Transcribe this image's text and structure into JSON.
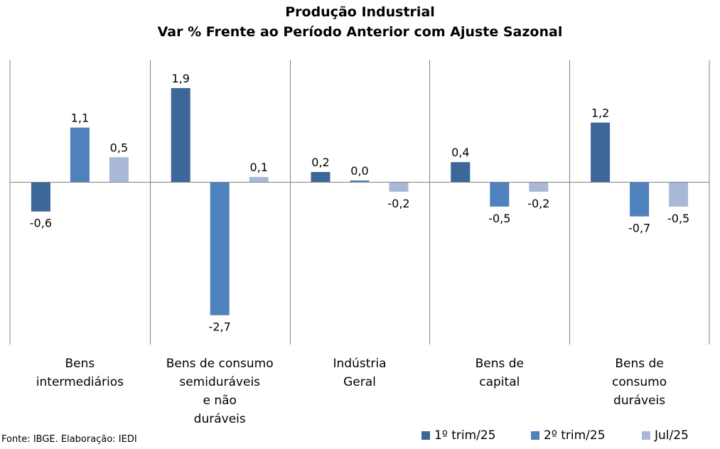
{
  "title": "Produção Industrial",
  "subtitle": "Var % Frente ao Período Anterior com Ajuste Sazonal",
  "source": "Fonte: IBGE. Elaboração: IEDI",
  "legend": [
    "1º trim/25",
    "2º trim/25",
    "Jul/25"
  ],
  "colors": [
    "#3d6699",
    "#4f81bd",
    "#aab8d8"
  ],
  "chart_data": {
    "type": "bar",
    "title": "Produção Industrial",
    "subtitle": "Var % Frente ao Período Anterior com Ajuste Sazonal",
    "categories": [
      [
        "Bens",
        "intermediários"
      ],
      [
        "Bens de consumo",
        "semiduráveis",
        "e não",
        "duráveis"
      ],
      [
        "Indústria",
        "Geral"
      ],
      [
        "Bens de",
        "capital"
      ],
      [
        "Bens de",
        "consumo",
        "duráveis"
      ]
    ],
    "series": [
      {
        "name": "1º trim/25",
        "values": [
          -0.6,
          1.9,
          0.2,
          0.4,
          1.2
        ]
      },
      {
        "name": "2º trim/25",
        "values": [
          1.1,
          -2.7,
          0.0,
          -0.5,
          -0.7
        ]
      },
      {
        "name": "Jul/25",
        "values": [
          0.5,
          0.1,
          -0.2,
          -0.2,
          -0.5
        ]
      }
    ],
    "data_labels": [
      [
        "-0,6",
        "1,9",
        "0,2",
        "0,4",
        "1,2"
      ],
      [
        "1,1",
        "-2,7",
        "0,0",
        "-0,5",
        "-0,7"
      ],
      [
        "0,5",
        "0,1",
        "-0,2",
        "-0,2",
        "-0,5"
      ]
    ],
    "legend_position": "bottom-right",
    "grid": false
  }
}
